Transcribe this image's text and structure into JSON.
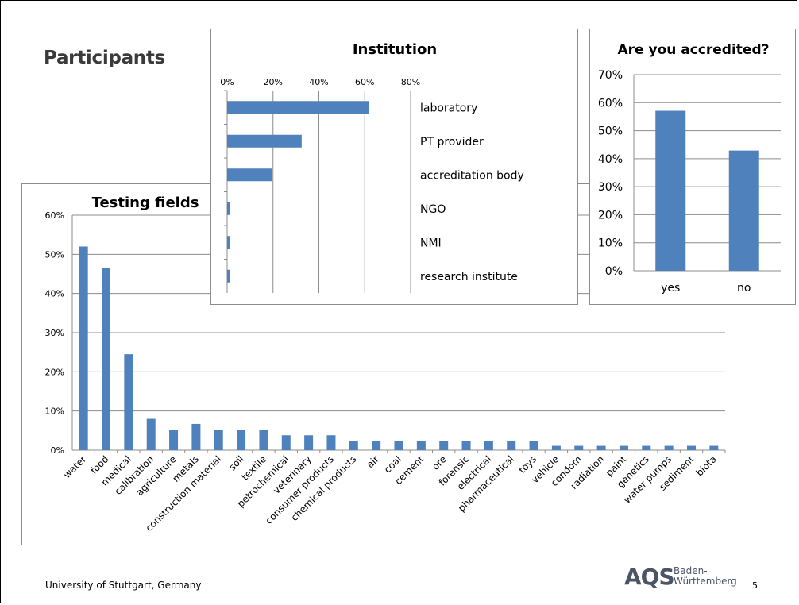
{
  "slide": {
    "title": "Participants",
    "footer": "University of Stuttgart, Germany",
    "page_number": "5",
    "logo_text": "AQS",
    "logo_sub_1": "Baden-",
    "logo_sub_2": "Württemberg"
  },
  "colors": {
    "bar": "#4f81bd",
    "grid": "#8c8c8c",
    "axis": "#8c8c8c"
  },
  "chart_data": [
    {
      "id": "testing-fields",
      "type": "bar",
      "title": "Testing fields",
      "ylim": [
        0,
        60
      ],
      "yticks": [
        "0%",
        "10%",
        "20%",
        "30%",
        "40%",
        "50%",
        "60%"
      ],
      "categories": [
        "water",
        "food",
        "medical",
        "calibration",
        "agriculture",
        "metals",
        "construction material",
        "soil",
        "textile",
        "petrochemical",
        "veterinary",
        "consumer products",
        "chemical products",
        "air",
        "coal",
        "cement",
        "ore",
        "forensic",
        "electrical",
        "pharmaceutical",
        "toys",
        "vehicle",
        "condom",
        "radiation",
        "paint",
        "genetics",
        "water pumps",
        "sediment",
        "biota"
      ],
      "values": [
        52,
        46.5,
        24.5,
        8,
        5.2,
        6.7,
        5.2,
        5.2,
        5.2,
        3.8,
        3.8,
        3.8,
        2.4,
        2.4,
        2.4,
        2.4,
        2.4,
        2.4,
        2.4,
        2.4,
        2.4,
        1.1,
        1.1,
        1.1,
        1.1,
        1.1,
        1.1,
        1.1,
        1.1
      ],
      "grid": true
    },
    {
      "id": "institution",
      "type": "bar",
      "orientation": "horizontal",
      "title": "Institution",
      "xlim": [
        0,
        80
      ],
      "xticks": [
        "0%",
        "20%",
        "40%",
        "60%",
        "80%"
      ],
      "categories": [
        "laboratory",
        "PT provider",
        "accreditation body",
        "NGO",
        "NMI",
        "research institute"
      ],
      "values": [
        62,
        32.5,
        19.5,
        1.2,
        1.2,
        1.2
      ],
      "grid": true
    },
    {
      "id": "accredited",
      "type": "bar",
      "title": "Are you accredited?",
      "ylim": [
        0,
        70
      ],
      "yticks": [
        "0%",
        "10%",
        "20%",
        "30%",
        "40%",
        "50%",
        "60%",
        "70%"
      ],
      "categories": [
        "yes",
        "no"
      ],
      "values": [
        57.1,
        42.9
      ],
      "grid": true
    }
  ]
}
